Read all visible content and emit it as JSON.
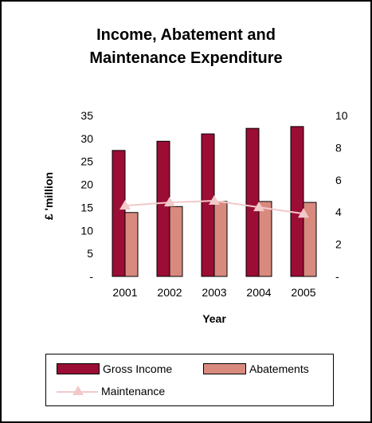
{
  "chart_data": {
    "type": "bar",
    "title_line1": "Income, Abatement and",
    "title_line2": "Maintenance Expenditure",
    "xlabel": "Year",
    "ylabel": "£ 'million",
    "categories": [
      "2001",
      "2002",
      "2003",
      "2004",
      "2005"
    ],
    "y_ticks": [
      "-",
      "5",
      "10",
      "15",
      "20",
      "25",
      "30",
      "35"
    ],
    "y2_ticks": [
      "-",
      "2",
      "4",
      "6",
      "8",
      "10"
    ],
    "ylim": [
      0,
      35
    ],
    "y2lim": [
      0,
      10
    ],
    "series": [
      {
        "name": "Gross Income",
        "type": "bar",
        "axis": "left",
        "color": "#9b0d35",
        "values": [
          27.4,
          29.4,
          31.0,
          32.2,
          32.6
        ]
      },
      {
        "name": "Abatements",
        "type": "bar",
        "axis": "left",
        "color": "#d98a7e",
        "values": [
          13.9,
          15.2,
          16.3,
          16.3,
          16.1
        ]
      },
      {
        "name": "Maintenance",
        "type": "line",
        "axis": "right",
        "color": "#f2c9c9",
        "values": [
          4.4,
          4.6,
          4.7,
          4.3,
          3.9
        ]
      }
    ],
    "legend_position": "bottom"
  }
}
